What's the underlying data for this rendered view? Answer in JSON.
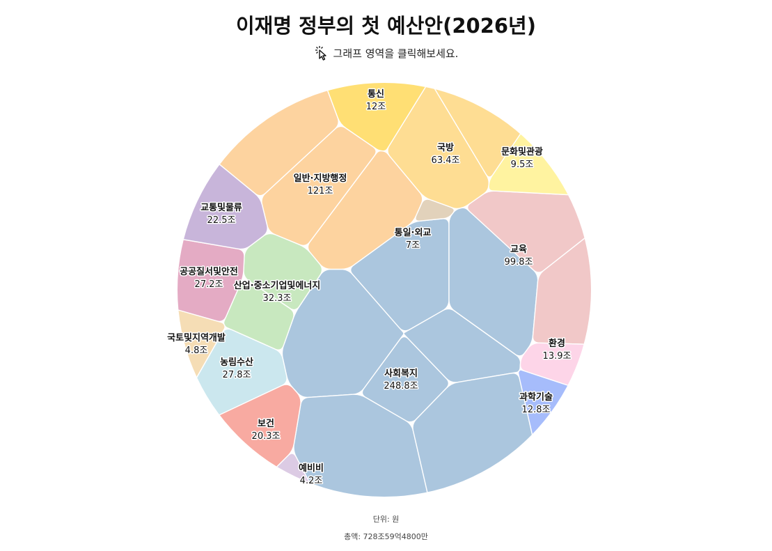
{
  "title": "이재명 정부의 첫 예산안(2026년)",
  "hint": "그래프 영역을 클릭해보세요.",
  "hint_icon": "click-cursor-icon",
  "footer": {
    "unit": "단위: 원",
    "total": "총액: 728조59억4800만"
  },
  "chart_data": {
    "type": "voronoi-treemap",
    "title": "이재명 정부의 첫 예산안(2026년)",
    "unit": "조",
    "categories": [
      {
        "name": "사회복지",
        "value": 248.8,
        "label": "248.8조",
        "color": "#abc6de"
      },
      {
        "name": "일반·지방행정",
        "value": 121,
        "label": "121조",
        "color": "#fdd39f"
      },
      {
        "name": "교육",
        "value": 99.8,
        "label": "99.8조",
        "color": "#f1c8c8"
      },
      {
        "name": "국방",
        "value": 63.4,
        "label": "63.4조",
        "color": "#fedd93"
      },
      {
        "name": "산업·중소기업및에너지",
        "value": 32.3,
        "label": "32.3조",
        "color": "#c8e8bf"
      },
      {
        "name": "농림수산",
        "value": 27.8,
        "label": "27.8조",
        "color": "#cbe7ee"
      },
      {
        "name": "공공질서및안전",
        "value": 27.2,
        "label": "27.2조",
        "color": "#e4abc4"
      },
      {
        "name": "교통및물류",
        "value": 22.5,
        "label": "22.5조",
        "color": "#c8b5da"
      },
      {
        "name": "보건",
        "value": 20.3,
        "label": "20.3조",
        "color": "#f8aaa1"
      },
      {
        "name": "환경",
        "value": 13.9,
        "label": "13.9조",
        "color": "#fdd5e8"
      },
      {
        "name": "과학기술",
        "value": 12.8,
        "label": "12.8조",
        "color": "#a6bcfb"
      },
      {
        "name": "통신",
        "value": 12,
        "label": "12조",
        "color": "#ffdf74"
      },
      {
        "name": "문화및관광",
        "value": 9.5,
        "label": "9.5조",
        "color": "#fff3a0"
      },
      {
        "name": "통일·외교",
        "value": 7,
        "label": "7조",
        "color": "#e2d2bb"
      },
      {
        "name": "국토및지역개발",
        "value": 4.8,
        "label": "4.8조",
        "color": "#f5ddb5"
      },
      {
        "name": "예비비",
        "value": 4.2,
        "label": "4.2조",
        "color": "#dccbe4"
      }
    ]
  }
}
